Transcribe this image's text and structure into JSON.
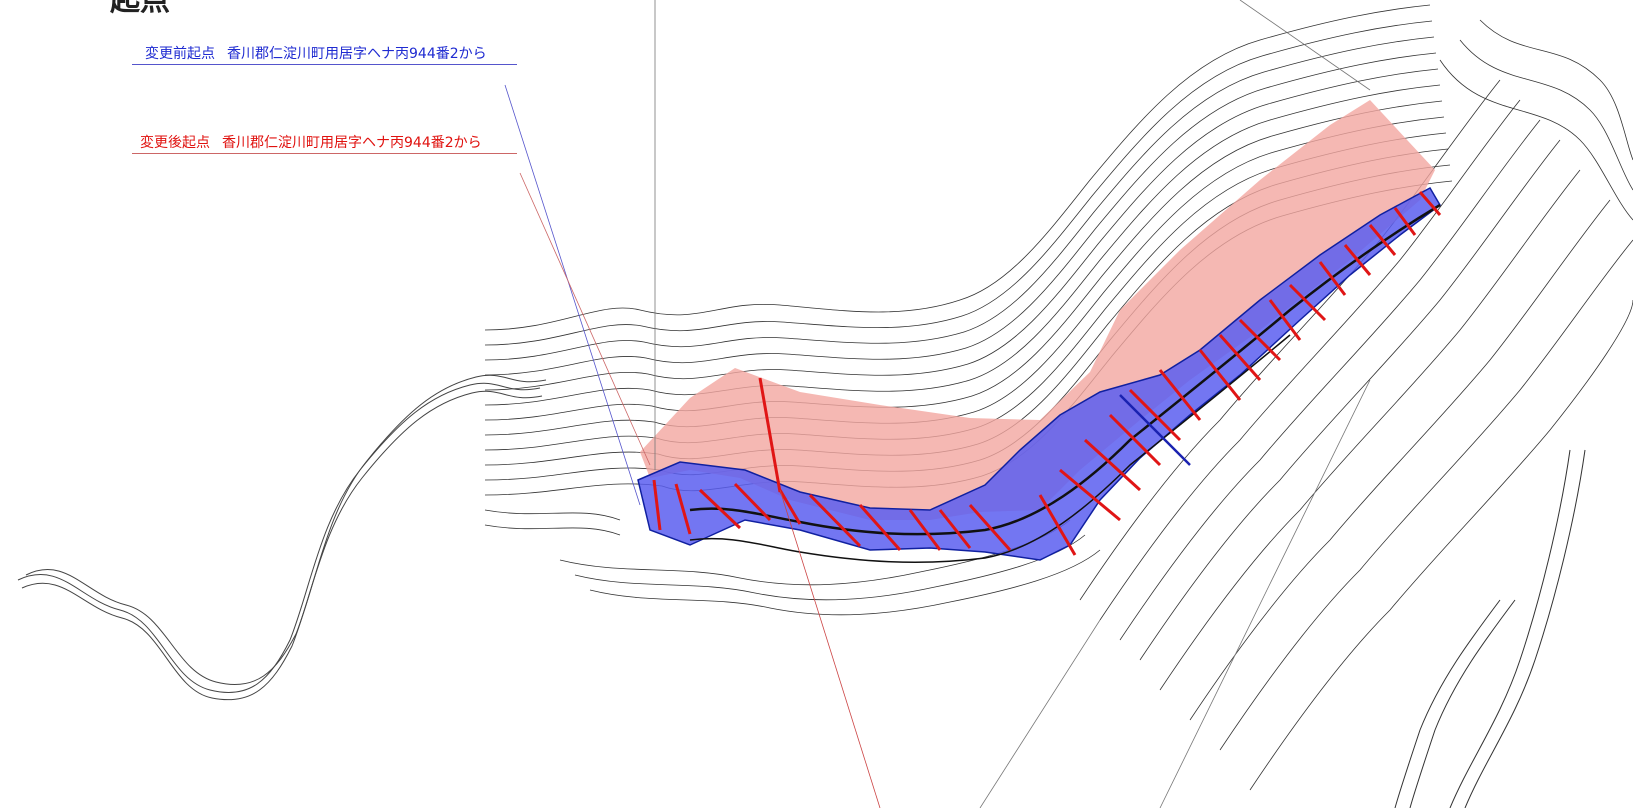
{
  "page": {
    "title": "起点"
  },
  "labels": {
    "before": {
      "key": "変更前起点",
      "text": "香川郡仁淀川町用居字ヘナ丙944番2から",
      "color": "#1f2bd1"
    },
    "after": {
      "key": "変更後起点",
      "text": "香川郡仁淀川町用居字ヘナ丙944番2から",
      "color": "#e0120f"
    }
  },
  "legend_colors": {
    "before_area": "#5b5ef0",
    "after_area": "#f2a6a0",
    "section_lines": "#e01515",
    "contours": "#333333"
  }
}
